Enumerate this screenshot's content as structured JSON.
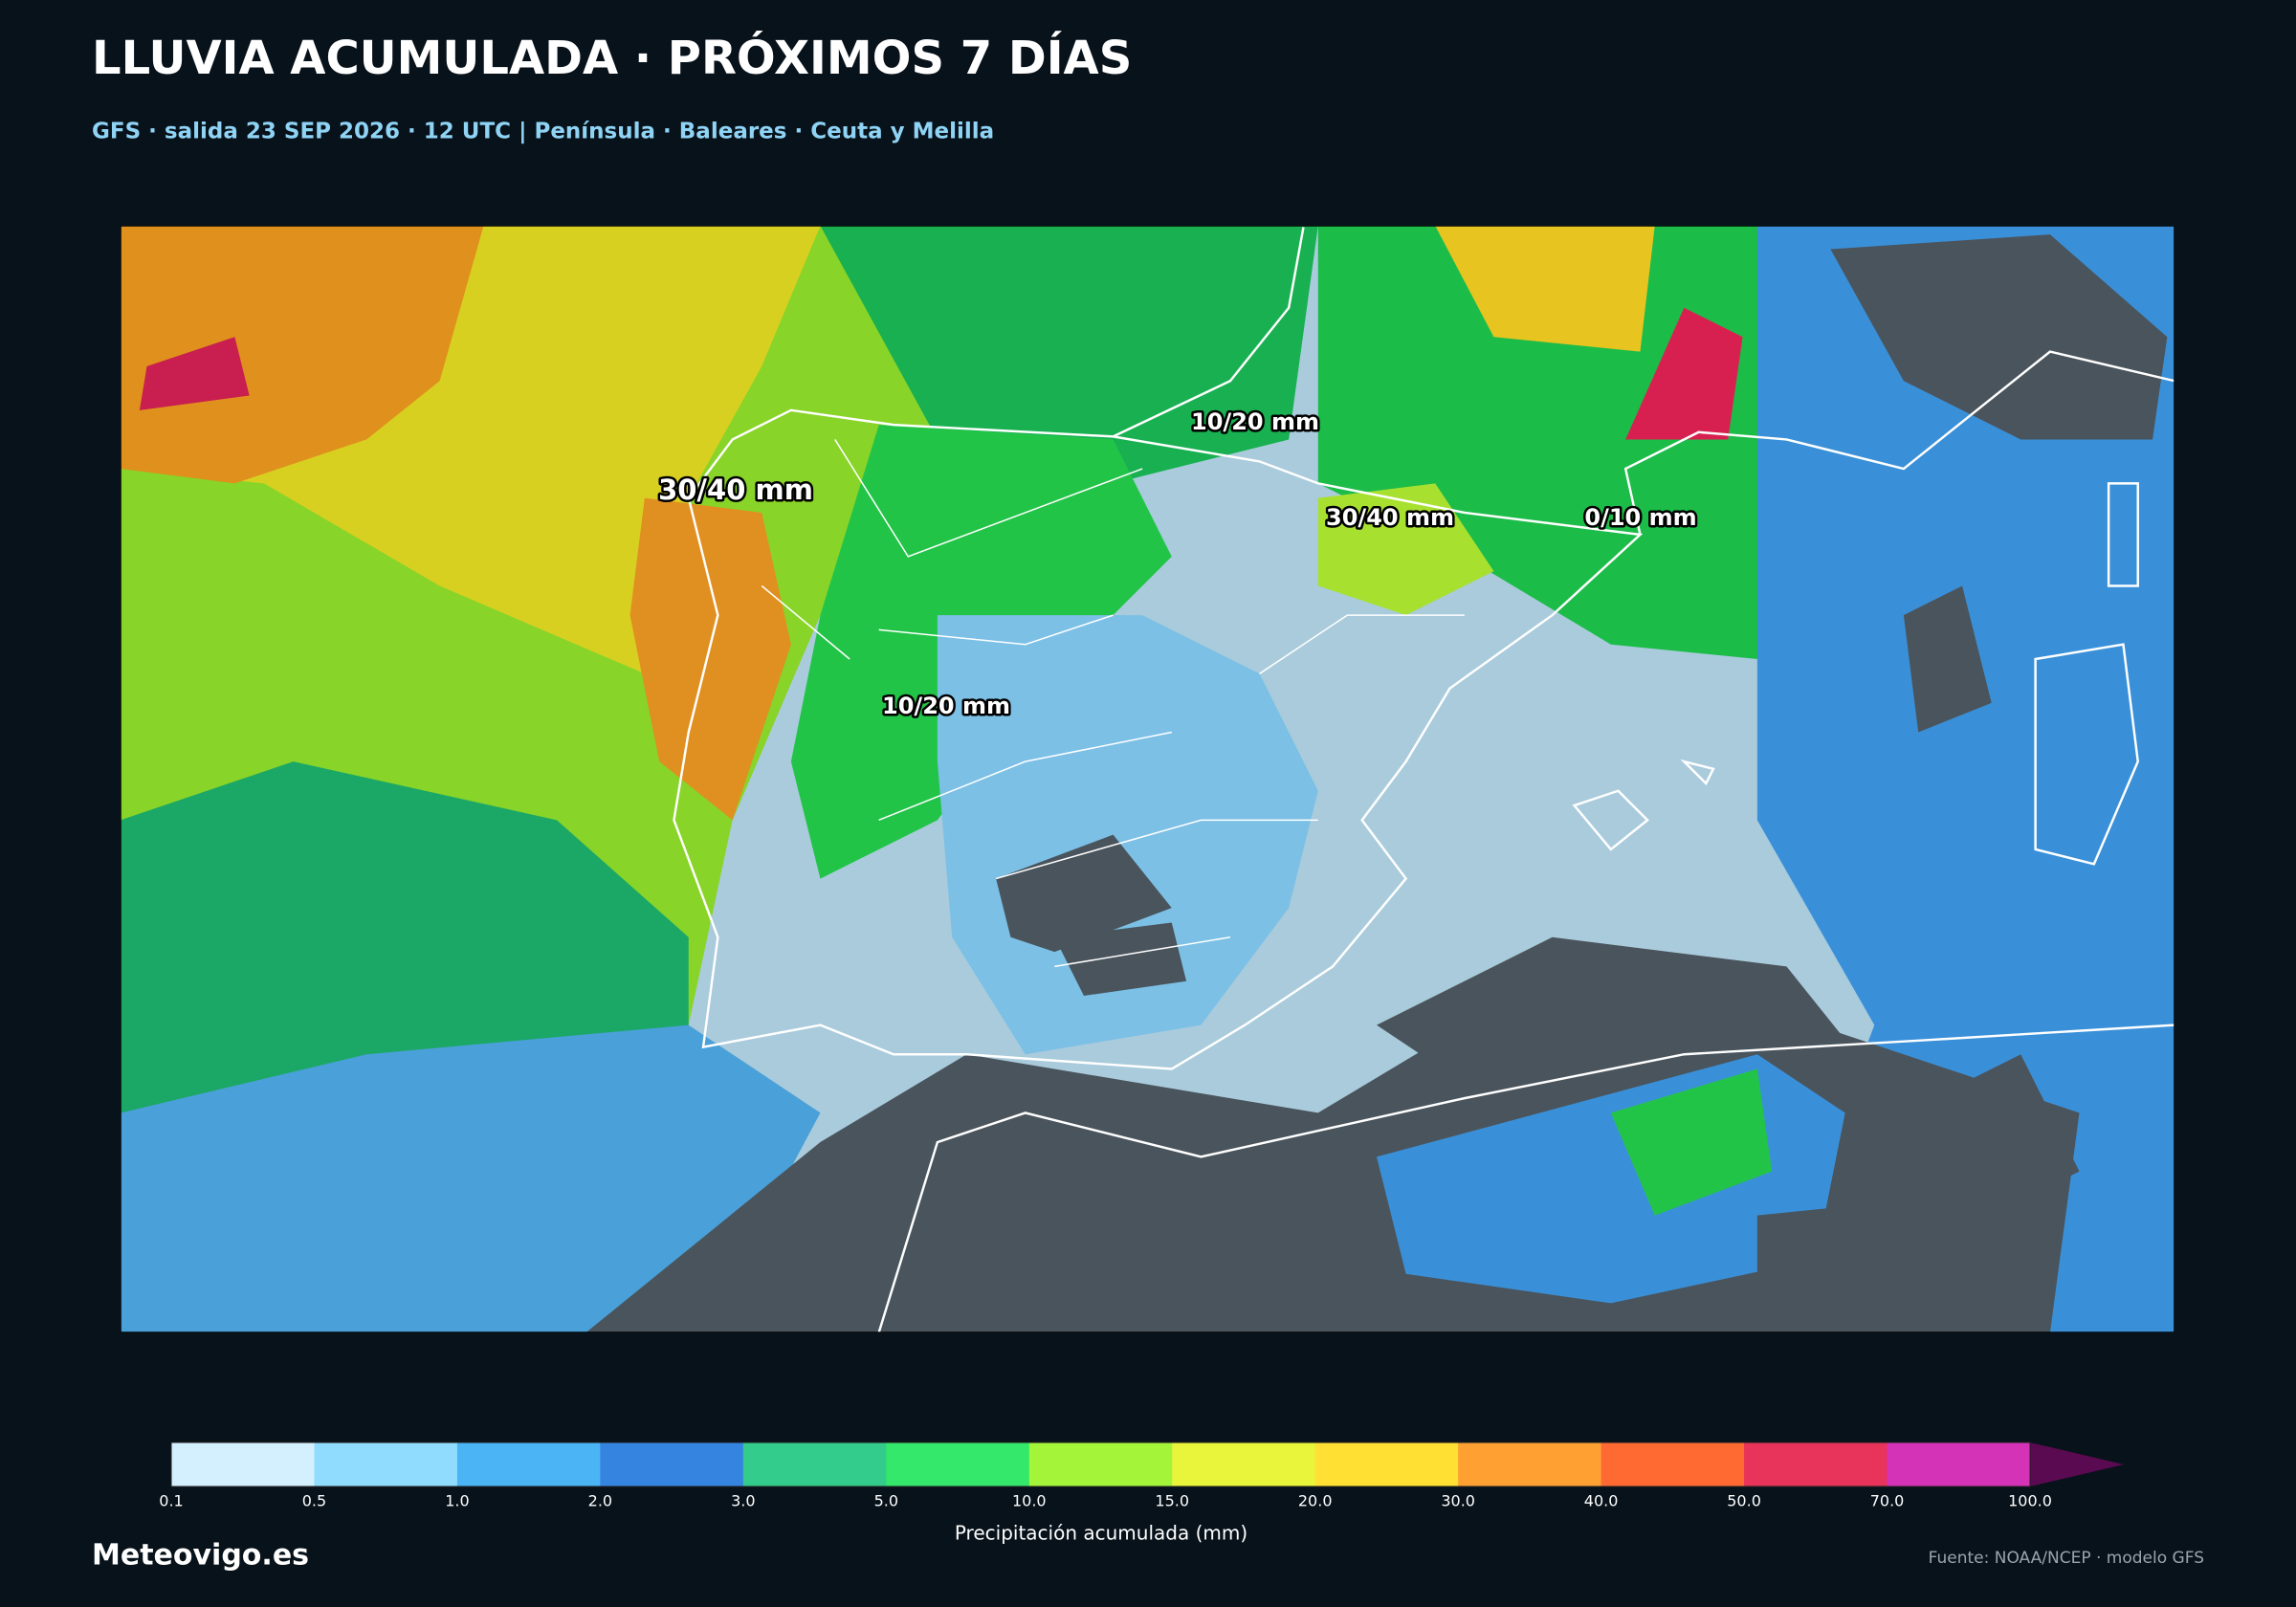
{
  "header": {
    "title": "LLUVIA ACUMULADA · PRÓXIMOS 7 DÍAS",
    "subtitle": "GFS · salida 23 SEP 2026 · 12 UTC  |  Península · Baleares · Ceuta y Melilla"
  },
  "map": {
    "labels": [
      "30/40 mm",
      "10/20 mm",
      "30/40 mm",
      "0/10 mm",
      "10/20 mm"
    ]
  },
  "legend": {
    "ticks": [
      "0.1",
      "0.5",
      "1.0",
      "2.0",
      "3.0",
      "5.0",
      "10.0",
      "15.0",
      "20.0",
      "30.0",
      "40.0",
      "50.0",
      "70.0",
      "100.0"
    ],
    "colors": [
      "#d4f0ff",
      "#8fdcff",
      "#4ab4f5",
      "#3584e0",
      "#33cc8c",
      "#33e86a",
      "#a4f53a",
      "#e8f53a",
      "#ffe033",
      "#ffa033",
      "#ff6a33",
      "#e8335a",
      "#d433b8"
    ],
    "extend_color": "#5a0a50",
    "label": "Precipitación acumulada (mm)"
  },
  "footer": {
    "brand": "Meteovigo.es",
    "source": "Fuente: NOAA/NCEP · modelo GFS"
  }
}
